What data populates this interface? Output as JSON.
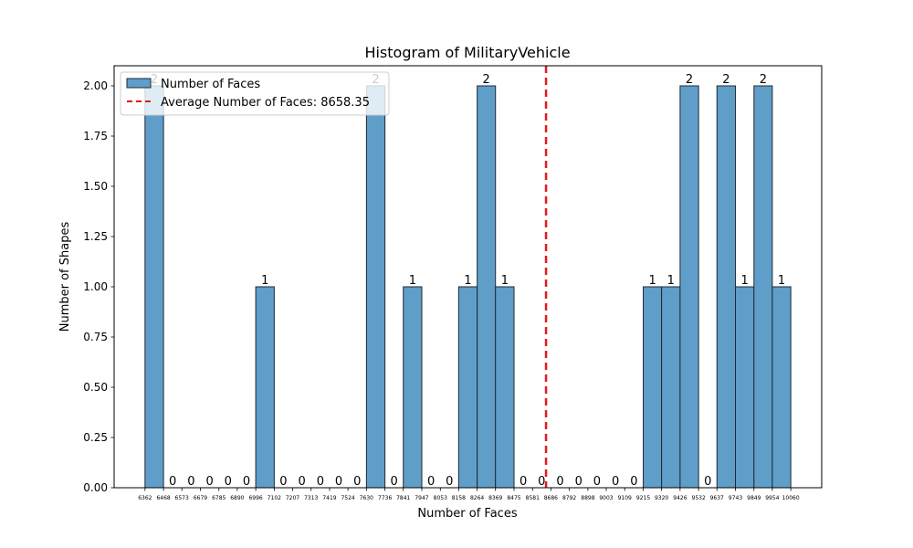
{
  "chart_data": {
    "type": "bar",
    "title": "Histogram of MilitaryVehicle",
    "xlabel": "Number of Faces",
    "ylabel": "Number of Shapes",
    "bin_edges": [
      "6362",
      "6468",
      "6573",
      "6679",
      "6785",
      "6890",
      "6996",
      "7102",
      "7207",
      "7313",
      "7419",
      "7524",
      "7630",
      "7736",
      "7841",
      "7947",
      "8053",
      "8158",
      "8264",
      "8369",
      "8475",
      "8581",
      "8686",
      "8792",
      "8898",
      "9003",
      "9109",
      "9215",
      "9320",
      "9426",
      "9532",
      "9637",
      "9743",
      "9849",
      "9954",
      "10060"
    ],
    "values": [
      2,
      0,
      0,
      0,
      0,
      0,
      1,
      0,
      0,
      0,
      0,
      0,
      2,
      0,
      1,
      0,
      0,
      1,
      2,
      1,
      0,
      0,
      0,
      0,
      0,
      0,
      0,
      1,
      1,
      2,
      0,
      2,
      1,
      2,
      1
    ],
    "ylim": [
      0,
      2.1
    ],
    "yticks": [
      "0.00",
      "0.25",
      "0.50",
      "0.75",
      "1.00",
      "1.25",
      "1.50",
      "1.75",
      "2.00"
    ],
    "xlim": [
      6185.1,
      10236.9
    ],
    "average": 8658.35,
    "legend": {
      "placement": "top-left",
      "bars_label": "Number of Faces",
      "average_label": "Average Number of Faces: 8658.35"
    },
    "colors": {
      "bar_fill": "#5f9ec9",
      "bar_edge": "#1f2a33",
      "average_line": "#e31a1c"
    },
    "grid": false
  }
}
